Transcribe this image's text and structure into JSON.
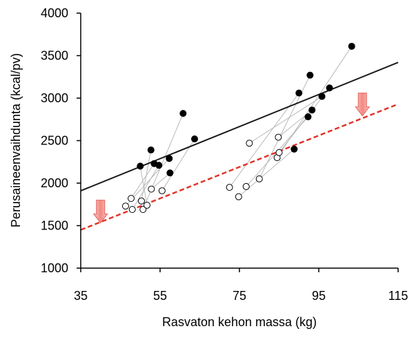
{
  "chart_data": {
    "type": "scatter",
    "xlabel": "Rasvaton kehon massa (kg)",
    "ylabel": "Perusaineenvaihdunta (kcal/pv)",
    "xlim": [
      35,
      115
    ],
    "ylim": [
      1000,
      4000
    ],
    "x_ticks": [
      35,
      55,
      75,
      95,
      115
    ],
    "y_ticks": [
      1000,
      1500,
      2000,
      2500,
      3000,
      3500,
      4000
    ],
    "grid": false,
    "series": [
      {
        "marker": "filled-circle",
        "color": "#000000",
        "points": [
          [
            50.0,
            2200
          ],
          [
            52.7,
            2390
          ],
          [
            53.5,
            2230
          ],
          [
            54.7,
            2210
          ],
          [
            57.3,
            2290
          ],
          [
            57.5,
            2120
          ],
          [
            60.8,
            2820
          ],
          [
            63.7,
            2520
          ],
          [
            88.8,
            2400
          ],
          [
            90.0,
            3060
          ],
          [
            92.3,
            2780
          ],
          [
            92.8,
            3270
          ],
          [
            93.3,
            2860
          ],
          [
            95.8,
            3020
          ],
          [
            97.7,
            3120
          ],
          [
            103.3,
            3610
          ]
        ]
      },
      {
        "marker": "open-circle",
        "color": "#000000",
        "points": [
          [
            46.3,
            1730
          ],
          [
            47.7,
            1820
          ],
          [
            48.0,
            1690
          ],
          [
            50.3,
            1790
          ],
          [
            50.7,
            1690
          ],
          [
            51.7,
            1740
          ],
          [
            52.8,
            1930
          ],
          [
            55.5,
            1910
          ],
          [
            72.5,
            1950
          ],
          [
            74.8,
            1840
          ],
          [
            76.7,
            1960
          ],
          [
            77.5,
            2470
          ],
          [
            80.0,
            2050
          ],
          [
            84.5,
            2300
          ],
          [
            84.8,
            2540
          ],
          [
            85.0,
            2360
          ]
        ]
      }
    ],
    "pairs": [
      [
        [
          50.0,
          2200
        ],
        [
          51.7,
          1740
        ]
      ],
      [
        [
          52.7,
          2390
        ],
        [
          50.3,
          1790
        ]
      ],
      [
        [
          53.5,
          2230
        ],
        [
          47.7,
          1820
        ]
      ],
      [
        [
          54.7,
          2210
        ],
        [
          48.0,
          1690
        ]
      ],
      [
        [
          57.3,
          2290
        ],
        [
          46.3,
          1730
        ]
      ],
      [
        [
          57.5,
          2120
        ],
        [
          52.8,
          1930
        ]
      ],
      [
        [
          60.8,
          2820
        ],
        [
          50.7,
          1690
        ]
      ],
      [
        [
          63.7,
          2520
        ],
        [
          55.5,
          1910
        ]
      ],
      [
        [
          88.8,
          2400
        ],
        [
          74.8,
          1840
        ]
      ],
      [
        [
          90.0,
          3060
        ],
        [
          72.5,
          1950
        ]
      ],
      [
        [
          92.3,
          2780
        ],
        [
          76.7,
          1960
        ]
      ],
      [
        [
          92.8,
          3270
        ],
        [
          80.0,
          2050
        ]
      ],
      [
        [
          93.3,
          2860
        ],
        [
          84.8,
          2540
        ]
      ],
      [
        [
          95.8,
          3020
        ],
        [
          77.5,
          2470
        ]
      ],
      [
        [
          97.7,
          3120
        ],
        [
          85.0,
          2360
        ]
      ],
      [
        [
          103.3,
          3610
        ],
        [
          84.5,
          2300
        ]
      ]
    ],
    "regression_lines": [
      {
        "style": "solid",
        "color": "#1a1a1a",
        "x": [
          35,
          115
        ],
        "y": [
          1910,
          3420
        ]
      },
      {
        "style": "dashed",
        "color": "#e0342a",
        "x": [
          35,
          115
        ],
        "y": [
          1450,
          2930
        ]
      }
    ],
    "annotations": [
      {
        "kind": "down-arrow",
        "x": 40,
        "y": 1800,
        "color": "#f4a09a"
      },
      {
        "kind": "down-arrow",
        "x": 106,
        "y": 3060,
        "color": "#f4a09a"
      }
    ]
  }
}
